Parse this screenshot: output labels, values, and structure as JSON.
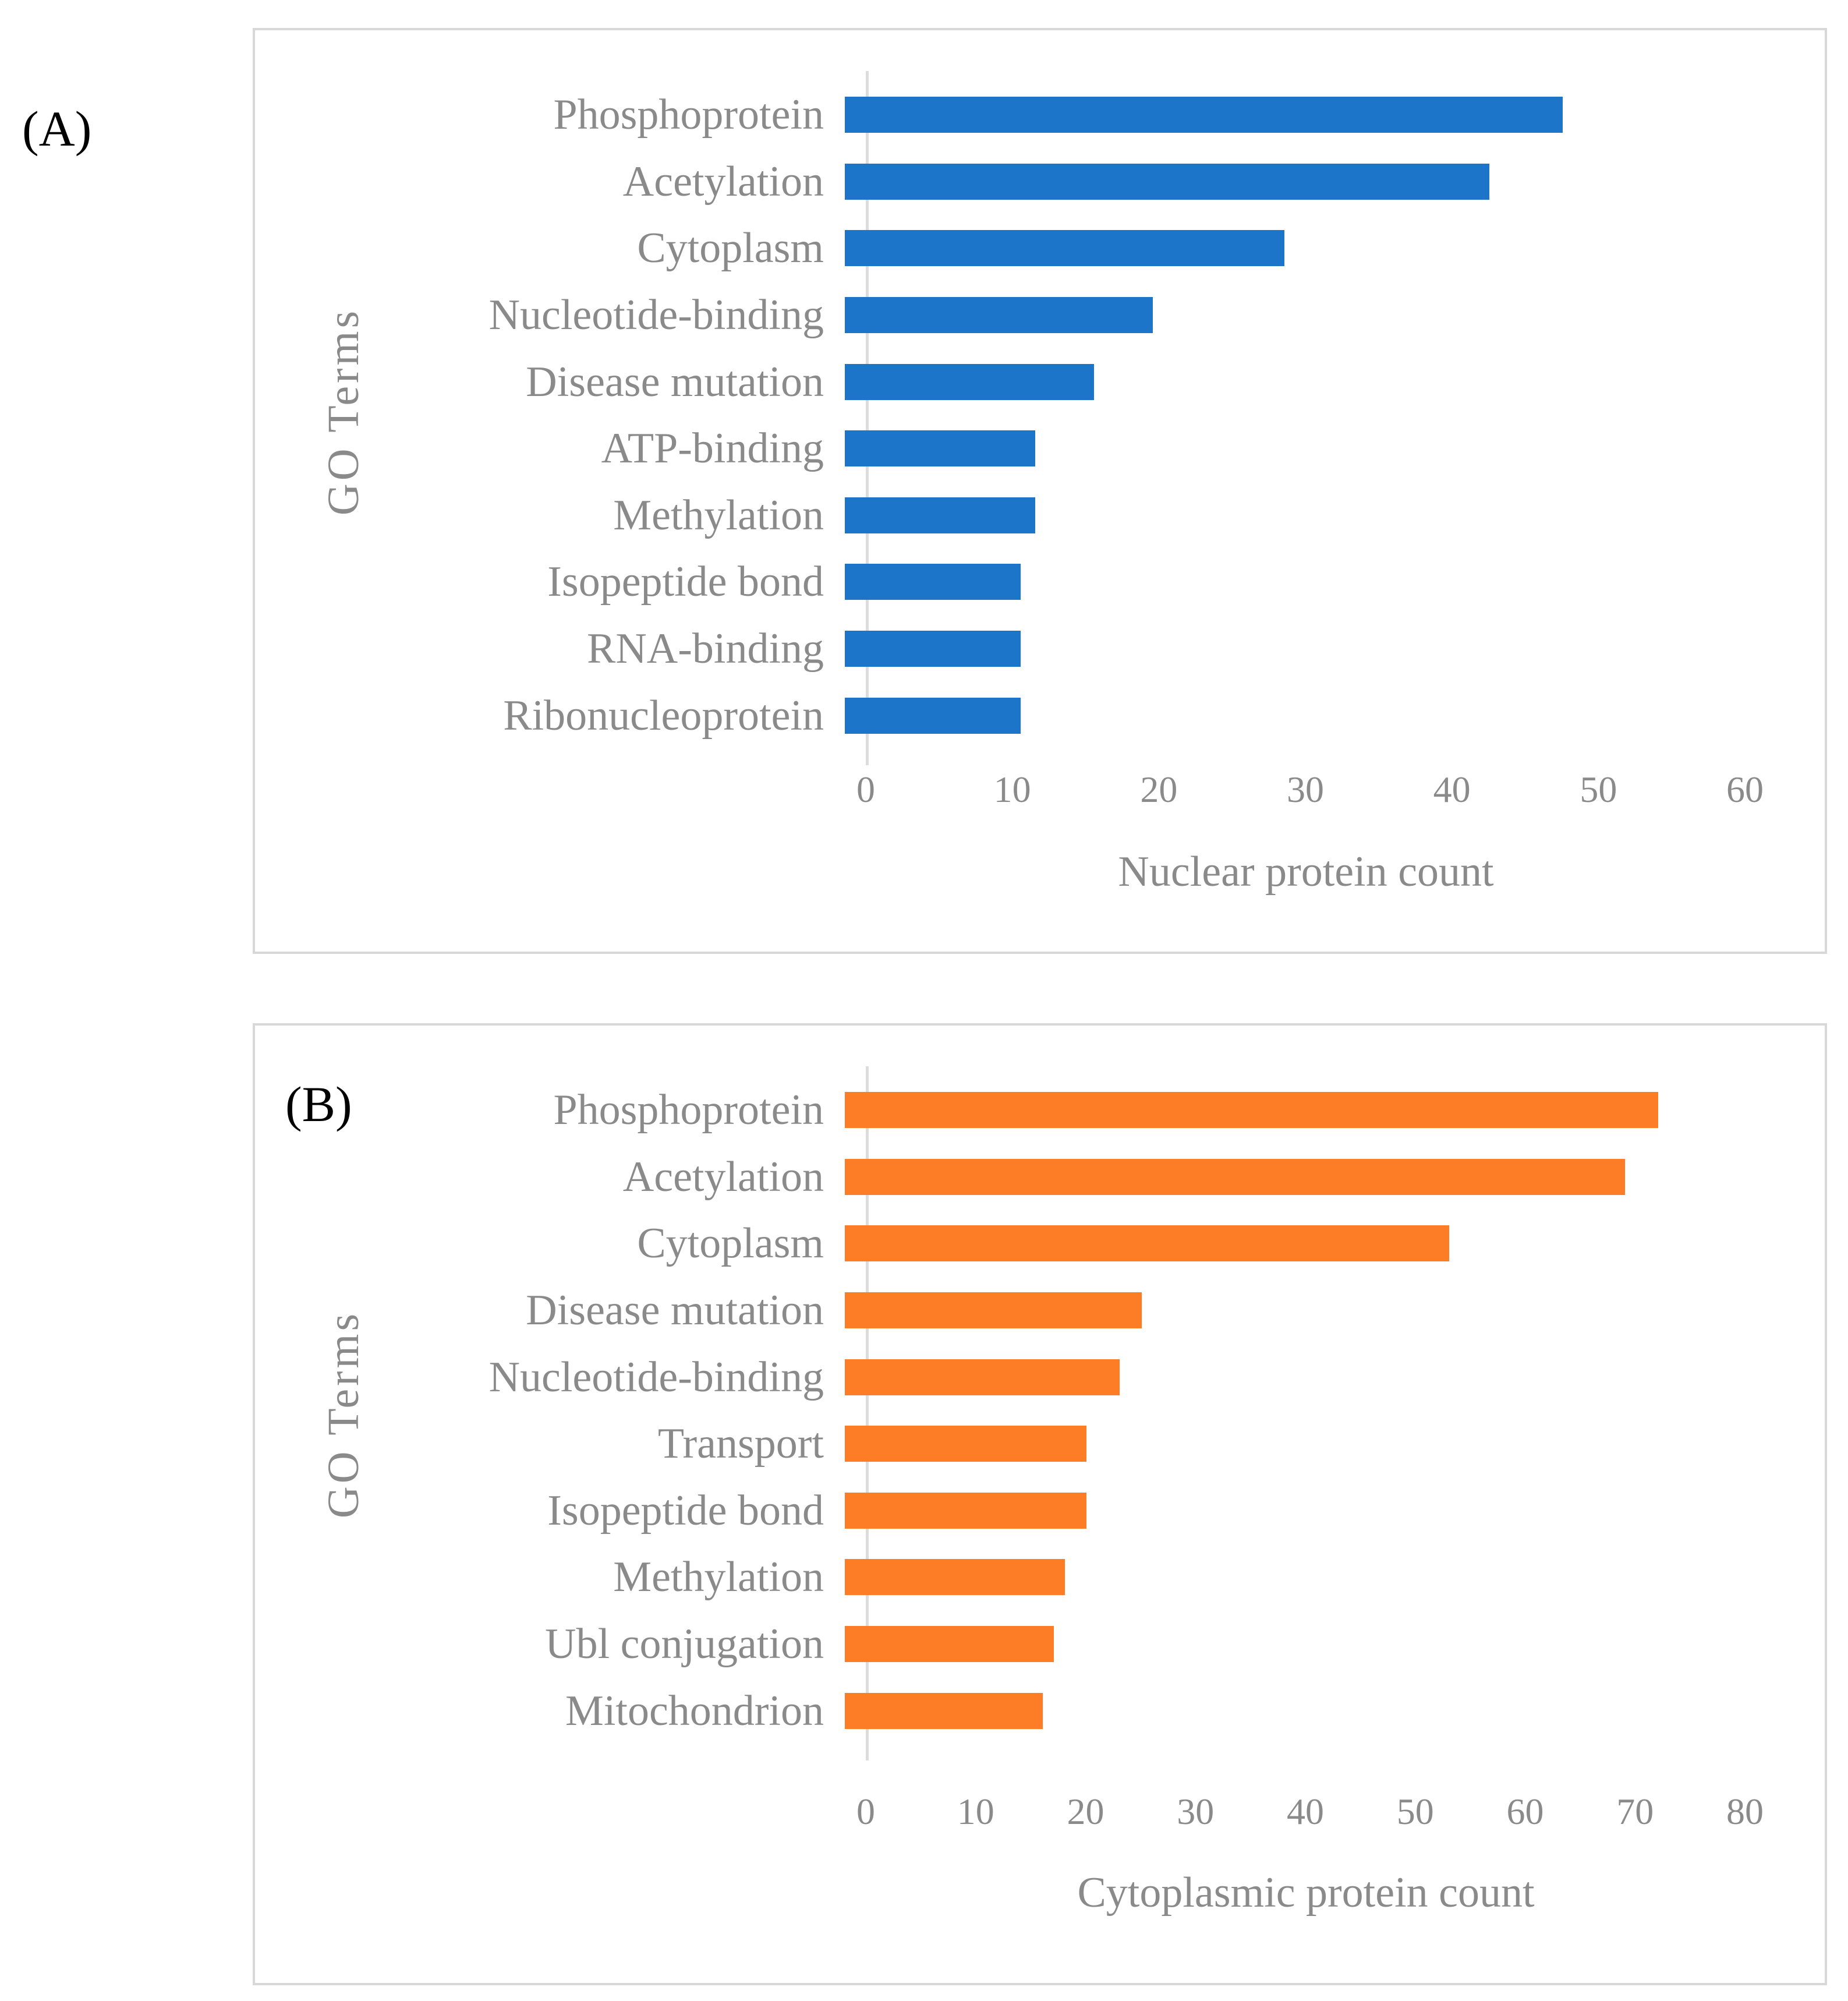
{
  "appearance": {
    "label_color": "#8A8A8A",
    "axis_line_color": "#DCDCDC",
    "border_color": "#D8D8D8",
    "panel_letter_color": "#000000"
  },
  "chart_data": [
    {
      "type": "bar",
      "orientation": "horizontal",
      "panel_label": "(A)",
      "title": "",
      "categories": [
        "Phosphoprotein",
        "Acetylation",
        "Cytoplasm",
        "Nucleotide-binding",
        "Disease mutation",
        "ATP-binding",
        "Methylation",
        "Isopeptide bond",
        "RNA-binding",
        "Ribonucleoprotein"
      ],
      "values": [
        49,
        44,
        30,
        21,
        17,
        13,
        13,
        12,
        12,
        12
      ],
      "xlabel": "Nuclear protein count",
      "ylabel": "GO Terms",
      "xlim": [
        0,
        60
      ],
      "xticks": [
        0,
        10,
        20,
        30,
        40,
        50,
        60
      ],
      "bar_color": "#1C75C9",
      "grid": false,
      "legend": false
    },
    {
      "type": "bar",
      "orientation": "horizontal",
      "panel_label": "(B)",
      "title": "",
      "categories": [
        "Phosphoprotein",
        "Acetylation",
        "Cytoplasm",
        "Disease mutation",
        "Nucleotide-binding",
        "Transport",
        "Isopeptide bond",
        "Methylation",
        "Ubl conjugation",
        "Mitochondrion"
      ],
      "values": [
        74,
        71,
        55,
        27,
        25,
        22,
        22,
        20,
        19,
        18
      ],
      "xlabel": "Cytoplasmic protein count",
      "ylabel": "GO Terms",
      "xlim": [
        0,
        80
      ],
      "xticks": [
        0,
        10,
        20,
        30,
        40,
        50,
        60,
        70,
        80
      ],
      "bar_color": "#FC7D26",
      "grid": false,
      "legend": false
    }
  ]
}
